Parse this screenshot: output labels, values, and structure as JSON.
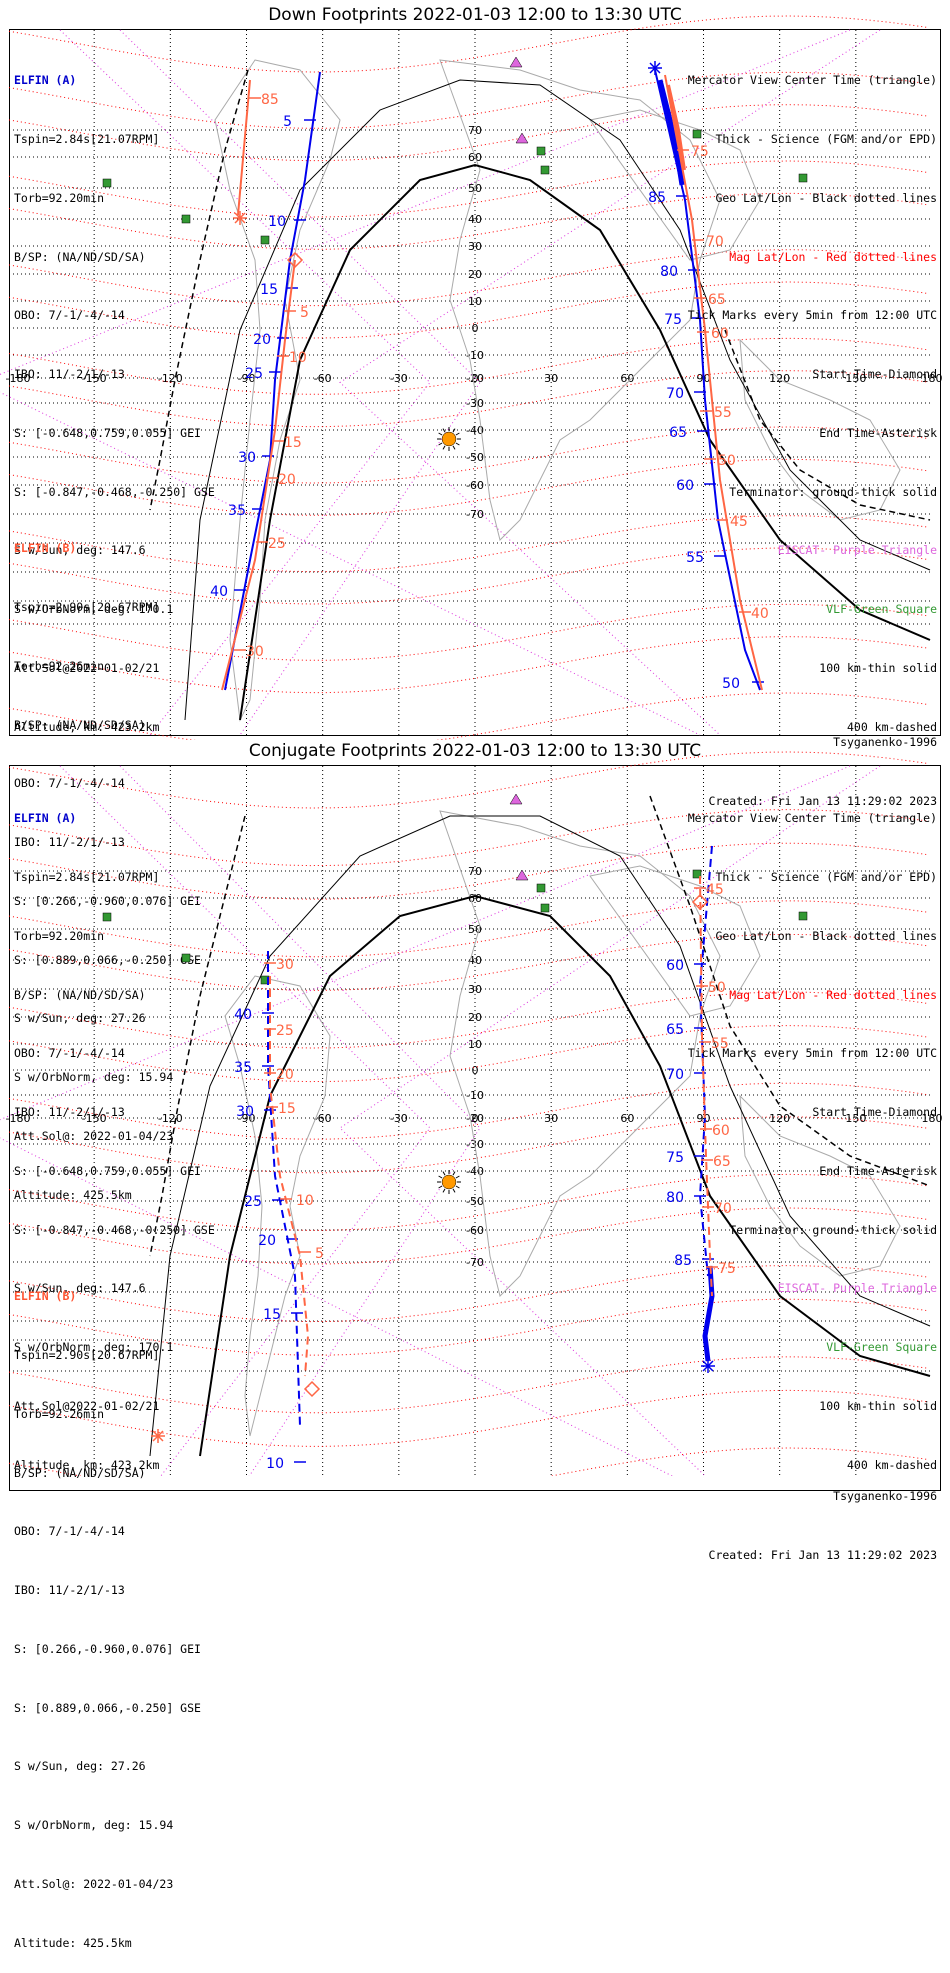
{
  "colors": {
    "elfin_a": "#0000ee",
    "elfin_b": "#ff6644",
    "mag_grid": "#ff0000",
    "geo_grid": "#000000",
    "eiscat": "#dd66dd",
    "vlf": "#339933",
    "continents": "#aaaaaa",
    "sun": "#ff9900"
  },
  "icons": {
    "sun": "sun-icon",
    "eiscat": "purple-triangle-icon",
    "vlf": "green-square-icon",
    "start": "diamond-icon",
    "end": "asterisk-icon"
  },
  "top_panel": {
    "title": "Down Footprints 2022-01-03 12:00 to 13:30 UTC",
    "track_labels_a": [
      "5",
      "10",
      "15",
      "20",
      "25",
      "30",
      "35",
      "40",
      "50",
      "55",
      "60",
      "65",
      "70",
      "75",
      "80",
      "85"
    ],
    "track_labels_b": [
      "85",
      "5",
      "10",
      "15",
      "20",
      "25",
      "30",
      "40",
      "45",
      "50",
      "55",
      "60",
      "65",
      "70",
      "75"
    ]
  },
  "bottom_panel": {
    "title": "Conjugate Footprints 2022-01-03 12:00 to 13:30 UTC",
    "track_labels_a": [
      "10",
      "15",
      "20",
      "25",
      "30",
      "35",
      "40",
      "60",
      "65",
      "70",
      "75",
      "80",
      "85"
    ],
    "track_labels_b": [
      "5",
      "10",
      "15",
      "20",
      "25",
      "30",
      "45",
      "50",
      "55",
      "60",
      "65",
      "70",
      "75"
    ]
  },
  "elfin_a": {
    "name": "ELFIN (A)",
    "lines": [
      "Tspin=2.84s[21.07RPM]",
      "Torb=92.20min",
      "B/SP: (NA/ND/SD/SA)",
      "OBO: 7/-1/-4/-14",
      "IBO: 11/-2/1/-13",
      "S: [-0.648,0.759,0.055] GEI",
      "S: [-0.847,-0.468,-0.250] GSE",
      "S w/Sun, deg: 147.6",
      "S w/OrbNorm, deg: 170.1",
      "Att.Sol@2022-01-02/21",
      "Altitude, km: 423.2km"
    ]
  },
  "elfin_b": {
    "name": "ELFIN (B)",
    "lines": [
      "Tspin=2.90s[20.67RPM]",
      "Torb=92.26min",
      "B/SP: (NA/ND/SD/SA)",
      "OBO: 7/-1/-4/-14",
      "IBO: 11/-2/1/-13",
      "S: [0.266,-0.960,0.076] GEI",
      "S: [0.889,0.066,-0.250] GSE",
      "S w/Sun, deg: 27.26",
      "S w/OrbNorm, deg: 15.94",
      "Att.Sol@: 2022-01-04/23",
      "Altitude: 425.5km"
    ]
  },
  "legend": {
    "mercator": "Mercator View Center Time (triangle)",
    "thick": "Thick - Science (FGM and/or EPD)",
    "geo": "Geo Lat/Lon - Black dotted lines",
    "mag": "Mag Lat/Lon - Red dotted lines",
    "ticks": "Tick Marks every 5min from 12:00 UTC",
    "start": "Start Time-Diamond",
    "end": "End Time-Asterisk",
    "terminator": "Terminator: ground-thick solid",
    "eiscat": "EISCAT- Purple Triangle",
    "vlf": "VLF-Green Square",
    "thin": "100 km-thin solid",
    "dashed": "400 km-dashed"
  },
  "footer": {
    "model": "Tsyganenko-1996",
    "created": "Created: Fri Jan 13 11:29:02 2023"
  },
  "axis": {
    "lon_labels": [
      "-180",
      "-150",
      "-120",
      "-90",
      "-60",
      "-30",
      "0",
      "30",
      "60",
      "90",
      "120",
      "150",
      "180"
    ],
    "lat_labels": [
      "70",
      "60",
      "50",
      "40",
      "30",
      "20",
      "10",
      "0",
      "-10",
      "-20",
      "-30",
      "-40",
      "-50",
      "-60",
      "-70"
    ]
  }
}
